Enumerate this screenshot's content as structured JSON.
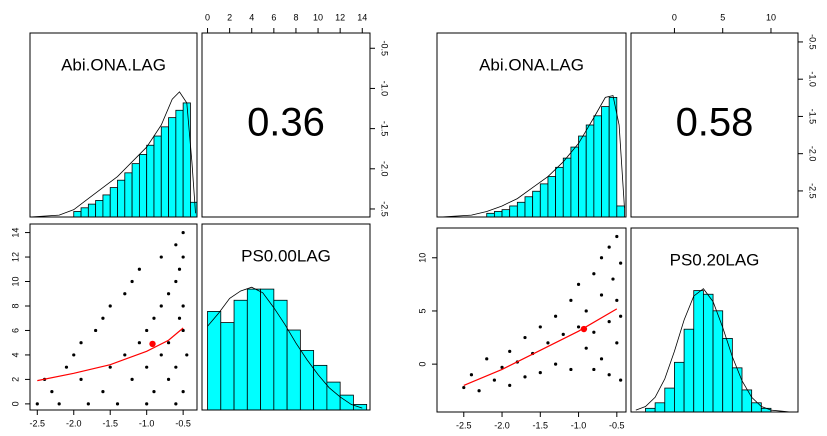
{
  "chart_data": [
    {
      "type": "pairs",
      "labels": [
        "Abi.ONA.LAG",
        "PS0.00LAG"
      ],
      "correlation": 0.36,
      "v1lim": [
        -2.6,
        -0.31
      ],
      "v1ticks": [
        -2.5,
        {
          "value": -2,
          "label": "-2.0"
        },
        -1.5,
        {
          "value": -1,
          "label": "-1.0"
        },
        -0.5
      ],
      "v2lim": [
        -0.5,
        14.7
      ],
      "v2ticks": [
        0,
        2,
        4,
        6,
        8,
        10,
        12,
        14
      ],
      "hist1": {
        "color": "#00ffff",
        "ylim": [
          0,
          1
        ],
        "bins": [
          -2.0,
          -1.9,
          -1.8,
          -1.7,
          -1.6,
          -1.5,
          -1.4,
          -1.3,
          -1.2,
          -1.1,
          -1.0,
          -0.9,
          -0.8,
          -0.7,
          -0.6,
          -0.5,
          -0.4,
          -0.3
        ],
        "counts": [
          0.03,
          0.05,
          0.07,
          0.09,
          0.12,
          0.16,
          0.2,
          0.24,
          0.29,
          0.34,
          0.39,
          0.44,
          0.49,
          0.54,
          0.58,
          0.62,
          0.08
        ],
        "density_x": [
          -2.6,
          -2.2,
          -2.0,
          -1.8,
          -1.6,
          -1.4,
          -1.2,
          -1.0,
          -0.8,
          -0.65,
          -0.55,
          -0.45,
          -0.38,
          -0.33
        ],
        "density_y": [
          0,
          0.01,
          0.04,
          0.1,
          0.16,
          0.22,
          0.3,
          0.38,
          0.5,
          0.64,
          0.68,
          0.62,
          0.3,
          0.02
        ]
      },
      "hist2": {
        "color": "#00ffff",
        "ylim": [
          0,
          1
        ],
        "bins": [
          0,
          1.2,
          2.4,
          3.6,
          4.8,
          6,
          7.2,
          8.4,
          9.6,
          10.8,
          12,
          13.2,
          14.4
        ],
        "counts": [
          0.53,
          0.47,
          0.59,
          0.65,
          0.65,
          0.59,
          0.43,
          0.32,
          0.24,
          0.15,
          0.08,
          0.03
        ],
        "density_x": [
          0,
          1,
          2,
          3,
          4,
          5,
          6,
          7,
          8,
          9,
          10,
          11,
          12,
          13,
          14
        ],
        "density_y": [
          0.45,
          0.52,
          0.6,
          0.64,
          0.66,
          0.63,
          0.55,
          0.46,
          0.36,
          0.27,
          0.19,
          0.12,
          0.07,
          0.03,
          0.01
        ]
      },
      "points": {
        "x": [
          -2.5,
          -2.2,
          -1.8,
          -1.4,
          -1.0,
          -0.6,
          -2.3,
          -1.6,
          -0.9,
          -0.5,
          -2.4,
          -1.9,
          -1.2,
          -0.7,
          -2.1,
          -1.5,
          -1.0,
          -0.6,
          -2.0,
          -1.3,
          -0.8,
          -0.45,
          -1.9,
          -1.1,
          -0.7,
          -1.7,
          -1.0,
          -0.5,
          -1.6,
          -0.9,
          -0.55,
          -1.5,
          -0.8,
          -0.5,
          -1.3,
          -0.7,
          -1.2,
          -0.6,
          -1.1,
          -0.55,
          -0.8,
          -0.5,
          -0.6,
          -0.5
        ],
        "y": [
          0,
          0,
          0,
          0,
          0,
          0,
          1,
          1,
          1,
          1,
          2,
          2,
          2,
          2,
          3,
          3,
          3,
          3,
          4,
          4,
          4,
          4,
          5,
          5,
          5,
          6,
          6,
          6,
          7,
          7,
          7,
          8,
          8,
          8,
          9,
          9,
          10,
          10,
          11,
          11,
          12,
          12,
          13,
          14
        ]
      },
      "smooth": {
        "color": "#ff0000",
        "x": [
          -2.5,
          -2.0,
          -1.5,
          -1.0,
          -0.7,
          -0.5
        ],
        "y": [
          1.9,
          2.5,
          3.2,
          4.3,
          5.2,
          6.2
        ]
      },
      "mean": [
        -0.92,
        4.9
      ]
    },
    {
      "type": "pairs",
      "labels": [
        "Abi.ONA.LAG",
        "PS0.20LAG"
      ],
      "correlation": 0.58,
      "v1lim": [
        -2.85,
        -0.38
      ],
      "v1ticks": [
        -2.5,
        {
          "value": -2,
          "label": "-2.0"
        },
        -1.5,
        {
          "value": -1,
          "label": "-1.0"
        },
        -0.5
      ],
      "v2lim": [
        -4.5,
        12.8
      ],
      "v2ticks": [
        0,
        5,
        10
      ],
      "hist1": {
        "color": "#00ffff",
        "ylim": [
          0,
          1
        ],
        "bins": [
          -2.2,
          -2.1,
          -2.0,
          -1.9,
          -1.8,
          -1.7,
          -1.6,
          -1.5,
          -1.4,
          -1.3,
          -1.2,
          -1.1,
          -1.0,
          -0.9,
          -0.8,
          -0.7,
          -0.6,
          -0.5,
          -0.4
        ],
        "counts": [
          0.02,
          0.03,
          0.04,
          0.06,
          0.08,
          0.11,
          0.14,
          0.18,
          0.22,
          0.27,
          0.32,
          0.38,
          0.44,
          0.5,
          0.55,
          0.6,
          0.65,
          0.06
        ],
        "density_x": [
          -2.8,
          -2.4,
          -2.2,
          -2.0,
          -1.8,
          -1.6,
          -1.4,
          -1.2,
          -1.0,
          -0.8,
          -0.65,
          -0.55,
          -0.47,
          -0.4
        ],
        "density_y": [
          0,
          0.01,
          0.03,
          0.06,
          0.1,
          0.16,
          0.22,
          0.3,
          0.4,
          0.54,
          0.65,
          0.66,
          0.5,
          0.05
        ]
      },
      "hist2": {
        "color": "#00ffff",
        "ylim": [
          0,
          1
        ],
        "bins": [
          -3,
          -2,
          -1,
          0,
          1,
          2,
          3,
          4,
          5,
          6,
          7,
          8,
          9,
          10
        ],
        "counts": [
          0.02,
          0.05,
          0.13,
          0.27,
          0.45,
          0.66,
          0.64,
          0.55,
          0.4,
          0.24,
          0.12,
          0.05,
          0.02
        ],
        "density_x": [
          -4,
          -3,
          -2,
          -1,
          0,
          1,
          2,
          3,
          4,
          5,
          6,
          7,
          8,
          9,
          10,
          11,
          12
        ],
        "density_y": [
          0.01,
          0.03,
          0.08,
          0.18,
          0.33,
          0.5,
          0.63,
          0.67,
          0.6,
          0.46,
          0.3,
          0.17,
          0.08,
          0.03,
          0.01,
          0.005,
          0
        ]
      },
      "points": {
        "x": [
          -2.5,
          -2.4,
          -2.3,
          -2.2,
          -2.1,
          -2.0,
          -1.9,
          -1.9,
          -1.8,
          -1.7,
          -1.7,
          -1.6,
          -1.5,
          -1.5,
          -1.4,
          -1.3,
          -1.3,
          -1.2,
          -1.1,
          -1.1,
          -1.0,
          -1.0,
          -0.9,
          -0.9,
          -0.8,
          -0.8,
          -0.8,
          -0.7,
          -0.7,
          -0.7,
          -0.6,
          -0.6,
          -0.6,
          -0.55,
          -0.5,
          -0.5,
          -0.5,
          -0.45,
          -0.45,
          -0.45
        ],
        "y": [
          -2.2,
          -1.0,
          -2.5,
          0.5,
          -1.5,
          -0.3,
          1.2,
          -2.0,
          0.2,
          2.5,
          -1.2,
          1.0,
          3.5,
          -0.8,
          2.0,
          4.5,
          0.0,
          2.8,
          6.0,
          -0.5,
          3.5,
          7.5,
          1.5,
          5.0,
          8.5,
          -0.5,
          3.0,
          10.0,
          6.5,
          0.5,
          11.0,
          4.0,
          -1.0,
          8.0,
          12.0,
          2.0,
          6.0,
          9.5,
          -1.5,
          4.5
        ]
      },
      "smooth": {
        "color": "#ff0000",
        "x": [
          -2.5,
          -2.0,
          -1.5,
          -1.0,
          -0.5
        ],
        "y": [
          -2,
          -0.5,
          1.3,
          3.1,
          5.2
        ]
      },
      "mean": [
        -0.93,
        3.3
      ]
    }
  ]
}
